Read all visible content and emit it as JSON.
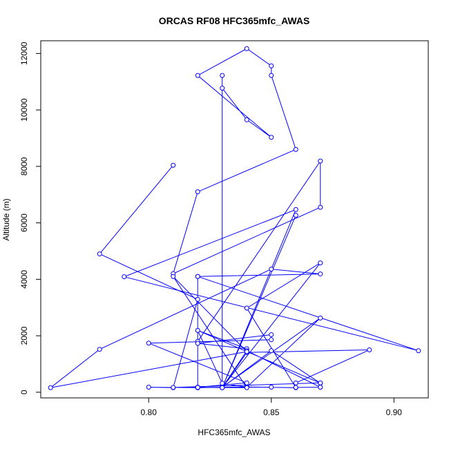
{
  "chart_data": {
    "type": "line",
    "title": "ORCAS RF08 HFC365mfc_AWAS",
    "xlabel": "HFC365mfc_AWAS",
    "ylabel": "Altitude (m)",
    "xlim": [
      0.756,
      0.914
    ],
    "ylim": [
      -200,
      12450
    ],
    "x_ticks": [
      0.8,
      0.85,
      0.9
    ],
    "x_tick_labels": [
      "0.80",
      "0.85",
      "0.90"
    ],
    "y_ticks": [
      0,
      2000,
      4000,
      6000,
      8000,
      10000,
      12000
    ],
    "y_tick_labels": [
      "0",
      "2000",
      "4000",
      "6000",
      "8000",
      "10000",
      "12000"
    ],
    "grid": false,
    "series": [
      {
        "color": "#0000ff",
        "marker": "open-circle",
        "x": [
          0.81,
          0.78,
          0.82,
          0.81,
          0.8,
          0.82,
          0.84,
          0.86,
          0.84,
          0.87,
          0.83,
          0.85,
          0.87,
          0.82,
          0.83,
          0.84,
          0.87,
          0.83,
          0.83,
          0.83,
          0.84,
          0.85,
          0.82,
          0.84,
          0.85,
          0.85,
          0.86,
          0.82,
          0.81,
          0.87,
          0.87,
          0.82,
          0.82,
          0.82,
          0.82,
          0.84,
          0.82,
          0.85,
          0.85,
          0.8,
          0.84,
          0.82,
          0.83,
          0.86,
          0.83,
          0.84,
          0.87,
          0.87,
          0.86,
          0.86,
          0.89,
          0.84,
          0.83,
          0.86,
          0.79,
          0.91,
          0.82,
          0.87,
          0.85,
          0.78,
          0.76,
          0.84,
          0.81,
          0.84,
          0.82,
          0.85,
          0.81,
          0.87
        ],
        "y": [
          8040,
          4900,
          3290,
          160,
          180,
          160,
          190,
          160,
          2980,
          4580,
          170,
          1470,
          320,
          2190,
          320,
          180,
          2630,
          180,
          11220,
          10770,
          9650,
          9030,
          11220,
          12170,
          11560,
          11220,
          8600,
          7100,
          4200,
          6550,
          8190,
          1800,
          160,
          4100,
          2190,
          1540,
          1730,
          2040,
          1860,
          1740,
          330,
          180,
          160,
          6270,
          160,
          1470,
          180,
          180,
          170,
          330,
          1500,
          1410,
          160,
          6470,
          4090,
          1470,
          4100,
          4190,
          4360,
          1520,
          160,
          1440,
          4100,
          160,
          170,
          180,
          170,
          330
        ]
      }
    ]
  }
}
